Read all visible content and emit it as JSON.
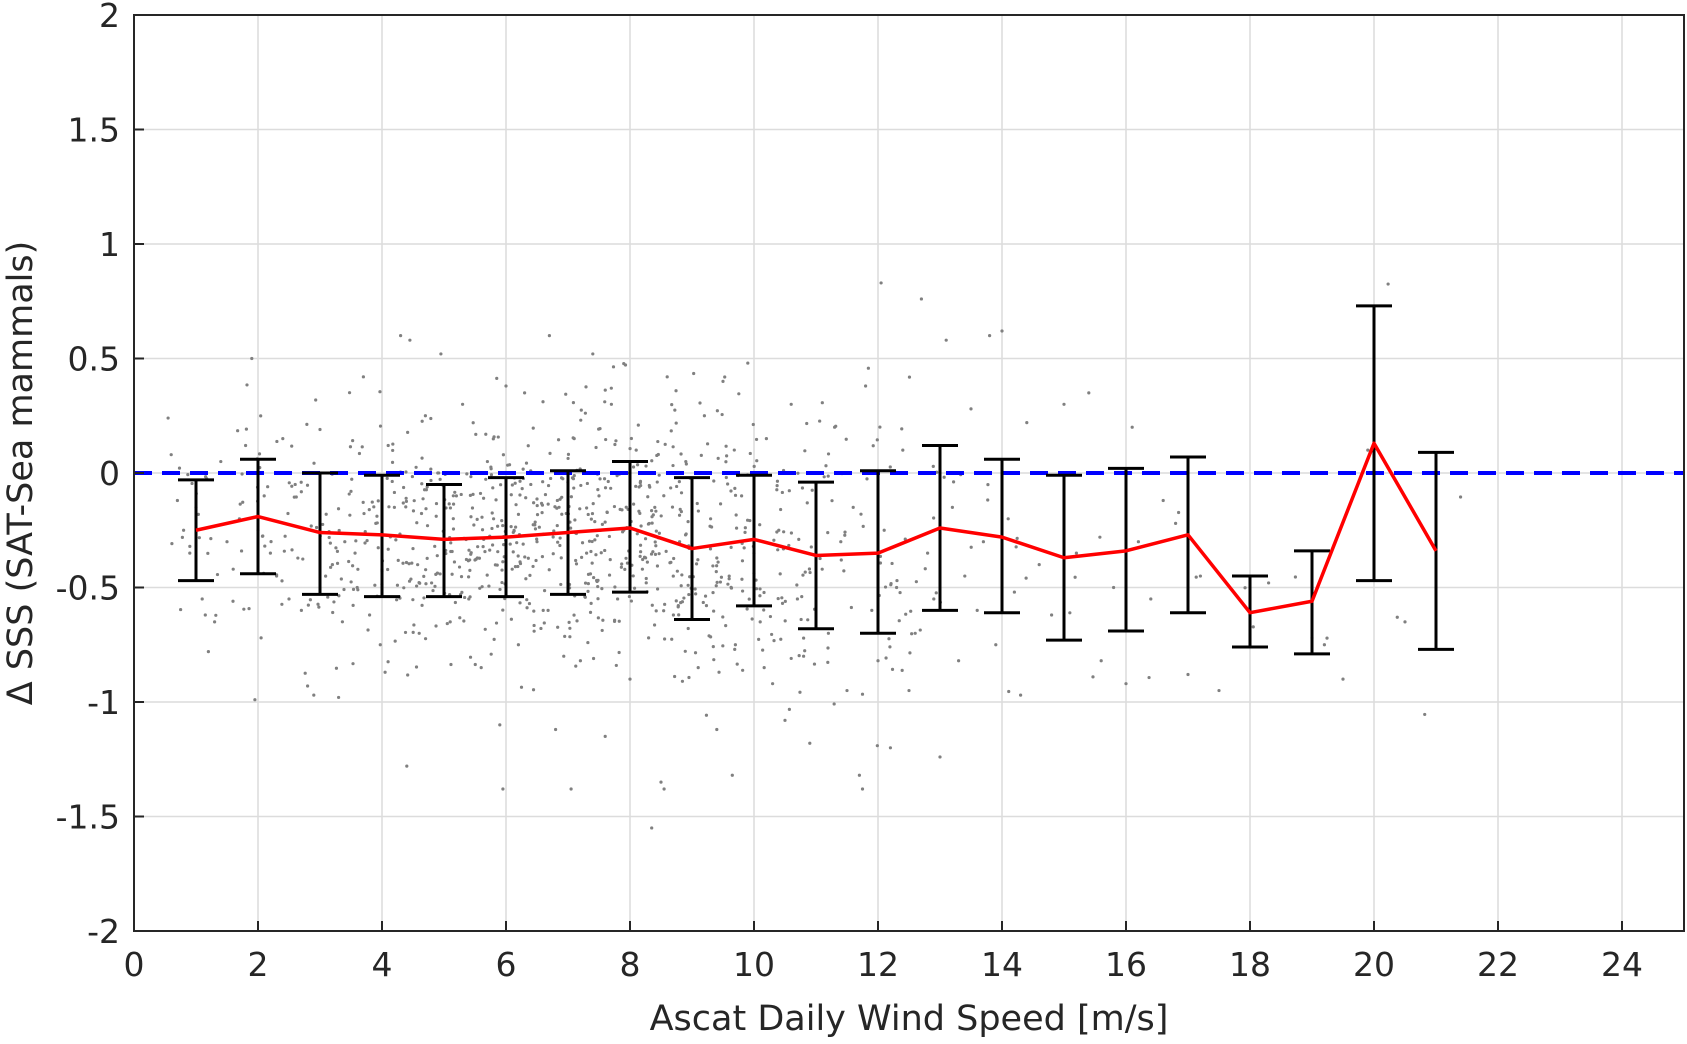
{
  "chart_data": {
    "type": "scatter",
    "xlabel": "Ascat Daily Wind Speed [m/s]",
    "ylabel": "Δ SSS (SAT-Sea mammals)",
    "xlim": [
      0,
      25
    ],
    "ylim": [
      -2,
      2
    ],
    "x_ticks": [
      "0",
      "2",
      "4",
      "6",
      "8",
      "10",
      "12",
      "14",
      "16",
      "18",
      "20",
      "22",
      "24"
    ],
    "y_ticks": [
      "-2",
      "-1.5",
      "-1",
      "-0.5",
      "0",
      "0.5",
      "1",
      "1.5",
      "2"
    ],
    "grid": true,
    "reference_line": {
      "y": 0,
      "style": "dashed",
      "color": "#0000ff"
    },
    "scatter_color": "#808080",
    "mean_color": "#ff0000",
    "errorbar_color": "#000000",
    "binned_stats": {
      "x": [
        1,
        2,
        3,
        4,
        5,
        6,
        7,
        8,
        9,
        10,
        11,
        12,
        13,
        14,
        15,
        16,
        17,
        18,
        19,
        20,
        21
      ],
      "mean": [
        -0.25,
        -0.19,
        -0.26,
        -0.27,
        -0.29,
        -0.28,
        -0.26,
        -0.24,
        -0.33,
        -0.29,
        -0.36,
        -0.35,
        -0.24,
        -0.28,
        -0.37,
        -0.34,
        -0.27,
        -0.61,
        -0.56,
        0.13,
        -0.34
      ],
      "lower": [
        -0.47,
        -0.44,
        -0.53,
        -0.54,
        -0.54,
        -0.54,
        -0.53,
        -0.52,
        -0.64,
        -0.58,
        -0.68,
        -0.7,
        -0.6,
        -0.61,
        -0.73,
        -0.69,
        -0.61,
        -0.76,
        -0.79,
        -0.47,
        -0.77
      ],
      "upper": [
        -0.03,
        0.06,
        0.0,
        -0.01,
        -0.05,
        -0.02,
        0.01,
        0.05,
        -0.02,
        -0.01,
        -0.04,
        0.01,
        0.12,
        0.06,
        -0.01,
        0.02,
        0.07,
        -0.45,
        -0.34,
        0.73,
        0.09
      ]
    },
    "scatter_points": [
      [
        0.55,
        0.24
      ],
      [
        0.6,
        0.08
      ],
      [
        0.7,
        -0.12
      ],
      [
        0.8,
        -0.25
      ],
      [
        0.9,
        -0.35
      ],
      [
        1.0,
        -0.15
      ],
      [
        1.1,
        -0.55
      ],
      [
        1.15,
        -0.62
      ],
      [
        1.2,
        -0.78
      ],
      [
        1.3,
        -0.65
      ],
      [
        1.4,
        0.05
      ],
      [
        1.5,
        -0.3
      ],
      [
        1.6,
        -0.42
      ],
      [
        1.7,
        -0.2
      ],
      [
        1.8,
        0.12
      ],
      [
        1.9,
        0.5
      ],
      [
        1.95,
        -0.99
      ],
      [
        2.0,
        -0.25
      ],
      [
        2.05,
        -0.72
      ],
      [
        2.1,
        -0.1
      ],
      [
        2.2,
        -0.35
      ],
      [
        2.3,
        -0.45
      ],
      [
        2.4,
        0.15
      ],
      [
        2.5,
        -0.55
      ],
      [
        2.6,
        -0.05
      ],
      [
        2.7,
        -0.6
      ],
      [
        2.8,
        -0.93
      ],
      [
        2.9,
        -0.97
      ],
      [
        3.0,
        0.19
      ],
      [
        3.1,
        -0.18
      ],
      [
        3.2,
        -0.4
      ],
      [
        3.3,
        -0.98
      ],
      [
        3.4,
        -0.3
      ],
      [
        3.5,
        -0.08
      ],
      [
        3.6,
        -0.5
      ],
      [
        3.7,
        0.42
      ],
      [
        3.8,
        -0.62
      ],
      [
        3.9,
        -0.22
      ],
      [
        4.0,
        -0.42
      ],
      [
        4.05,
        -0.87
      ],
      [
        4.1,
        0.12
      ],
      [
        4.2,
        -0.15
      ],
      [
        4.3,
        0.6
      ],
      [
        4.4,
        -1.28
      ],
      [
        4.45,
        0.58
      ],
      [
        4.5,
        -0.33
      ],
      [
        4.6,
        -0.7
      ],
      [
        4.7,
        0.25
      ],
      [
        4.8,
        -0.48
      ],
      [
        4.9,
        0.0
      ],
      [
        4.95,
        0.52
      ],
      [
        5.0,
        -0.25
      ],
      [
        5.1,
        -0.65
      ],
      [
        5.2,
        -0.1
      ],
      [
        5.3,
        0.3
      ],
      [
        5.4,
        -0.55
      ],
      [
        5.5,
        -0.38
      ],
      [
        5.6,
        -0.85
      ],
      [
        5.7,
        0.05
      ],
      [
        5.8,
        -0.2
      ],
      [
        5.9,
        -1.1
      ],
      [
        5.95,
        -1.38
      ],
      [
        6.0,
        0.38
      ],
      [
        6.1,
        -0.42
      ],
      [
        6.2,
        -0.75
      ],
      [
        6.3,
        0.35
      ],
      [
        6.4,
        -0.05
      ],
      [
        6.5,
        -0.3
      ],
      [
        6.6,
        -0.6
      ],
      [
        6.7,
        0.6
      ],
      [
        6.8,
        -1.12
      ],
      [
        6.9,
        -0.18
      ],
      [
        7.0,
        -0.48
      ],
      [
        7.05,
        -1.38
      ],
      [
        7.1,
        0.15
      ],
      [
        7.2,
        -0.82
      ],
      [
        7.3,
        -0.35
      ],
      [
        7.4,
        0.52
      ],
      [
        7.5,
        -0.1
      ],
      [
        7.6,
        -1.15
      ],
      [
        7.7,
        0.3
      ],
      [
        7.8,
        -0.55
      ],
      [
        7.9,
        -0.25
      ],
      [
        8.0,
        -0.9
      ],
      [
        8.1,
        0.1
      ],
      [
        8.2,
        -0.42
      ],
      [
        8.3,
        -0.72
      ],
      [
        8.35,
        -1.55
      ],
      [
        8.4,
        -0.15
      ],
      [
        8.5,
        -1.35
      ],
      [
        8.55,
        -1.38
      ],
      [
        8.6,
        0.42
      ],
      [
        8.7,
        -0.62
      ],
      [
        8.8,
        -0.3
      ],
      [
        8.9,
        0.05
      ],
      [
        9.0,
        -0.5
      ],
      [
        9.1,
        -0.85
      ],
      [
        9.2,
        0.25
      ],
      [
        9.3,
        -0.2
      ],
      [
        9.4,
        -1.12
      ],
      [
        9.5,
        0.4
      ],
      [
        9.6,
        -0.45
      ],
      [
        9.65,
        -1.32
      ],
      [
        9.7,
        -0.75
      ],
      [
        9.8,
        -0.1
      ],
      [
        9.9,
        0.48
      ],
      [
        10.0,
        -0.35
      ],
      [
        10.1,
        -0.65
      ],
      [
        10.2,
        0.15
      ],
      [
        10.3,
        -0.92
      ],
      [
        10.4,
        -0.25
      ],
      [
        10.5,
        -1.08
      ],
      [
        10.6,
        0.3
      ],
      [
        10.7,
        -0.55
      ],
      [
        10.8,
        -0.8
      ],
      [
        10.9,
        -1.18
      ],
      [
        11.0,
        -0.05
      ],
      [
        11.1,
        -0.42
      ],
      [
        11.2,
        -0.7
      ],
      [
        11.3,
        0.2
      ],
      [
        11.4,
        -0.3
      ],
      [
        11.5,
        -0.95
      ],
      [
        11.6,
        -0.15
      ],
      [
        11.7,
        -1.32
      ],
      [
        11.75,
        -1.38
      ],
      [
        11.8,
        0.38
      ],
      [
        11.9,
        -0.6
      ],
      [
        12.0,
        -0.82
      ],
      [
        12.05,
        0.83
      ],
      [
        12.1,
        -0.25
      ],
      [
        12.2,
        -1.2
      ],
      [
        12.3,
        -0.5
      ],
      [
        12.4,
        0.1
      ],
      [
        12.5,
        -0.95
      ],
      [
        12.6,
        -0.7
      ],
      [
        12.7,
        0.76
      ],
      [
        12.8,
        -0.35
      ],
      [
        12.9,
        -0.55
      ],
      [
        13.0,
        -1.24
      ],
      [
        13.1,
        0.58
      ],
      [
        13.2,
        -0.15
      ],
      [
        13.3,
        -0.82
      ],
      [
        13.4,
        -0.45
      ],
      [
        13.5,
        0.28
      ],
      [
        13.6,
        -0.6
      ],
      [
        13.7,
        -0.3
      ],
      [
        13.8,
        0.6
      ],
      [
        13.9,
        -0.75
      ],
      [
        14.0,
        0.62
      ],
      [
        14.1,
        -0.2
      ],
      [
        14.2,
        -0.52
      ],
      [
        14.3,
        -0.97
      ],
      [
        14.4,
        0.22
      ],
      [
        14.6,
        -0.4
      ],
      [
        14.8,
        -0.62
      ],
      [
        15.0,
        0.3
      ],
      [
        15.2,
        -0.35
      ],
      [
        15.4,
        0.35
      ],
      [
        15.6,
        -0.82
      ],
      [
        15.8,
        -0.5
      ],
      [
        16.0,
        -0.92
      ],
      [
        16.1,
        0.2
      ],
      [
        16.2,
        -0.3
      ],
      [
        16.4,
        -0.55
      ],
      [
        16.6,
        -0.12
      ],
      [
        16.8,
        -0.22
      ],
      [
        17.0,
        -0.88
      ],
      [
        17.2,
        -0.45
      ],
      [
        17.5,
        -0.95
      ],
      [
        18.0,
        -0.62
      ],
      [
        18.3,
        -0.48
      ],
      [
        19.0,
        -0.72
      ],
      [
        19.2,
        -0.75
      ],
      [
        19.5,
        -0.9
      ],
      [
        19.9,
        0.1
      ],
      [
        20.5,
        -0.65
      ]
    ]
  }
}
